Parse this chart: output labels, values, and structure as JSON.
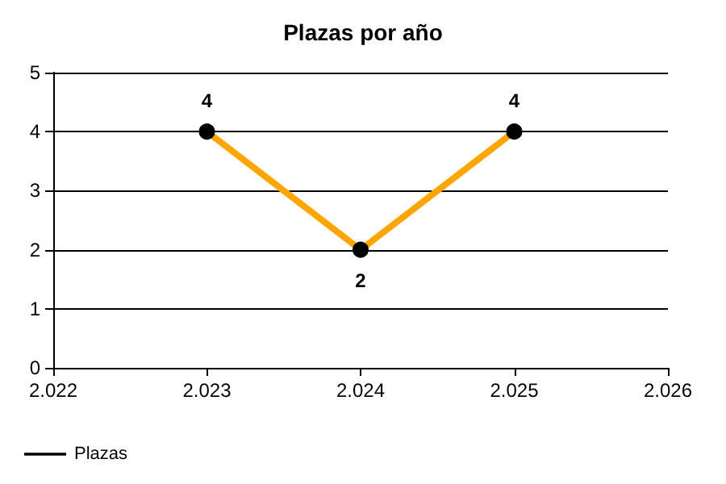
{
  "chart_data": {
    "type": "line",
    "title": "Plazas por año",
    "x": [
      2023,
      2024,
      2025
    ],
    "series": [
      {
        "name": "Plazas",
        "color": "#ffa500",
        "values": [
          4,
          2,
          4
        ]
      }
    ],
    "xlim": [
      2022,
      2026
    ],
    "xticks": [
      {
        "value": 2022,
        "label": "2.022"
      },
      {
        "value": 2023,
        "label": "2.023"
      },
      {
        "value": 2024,
        "label": "2.024"
      },
      {
        "value": 2025,
        "label": "2.025"
      },
      {
        "value": 2026,
        "label": "2.026"
      }
    ],
    "ylim": [
      0,
      5
    ],
    "yticks": [
      0,
      1,
      2,
      3,
      4,
      5
    ],
    "grid": "y",
    "legend": "bottom left",
    "marker": "circle",
    "line_style": "solid",
    "data_labels": true
  }
}
